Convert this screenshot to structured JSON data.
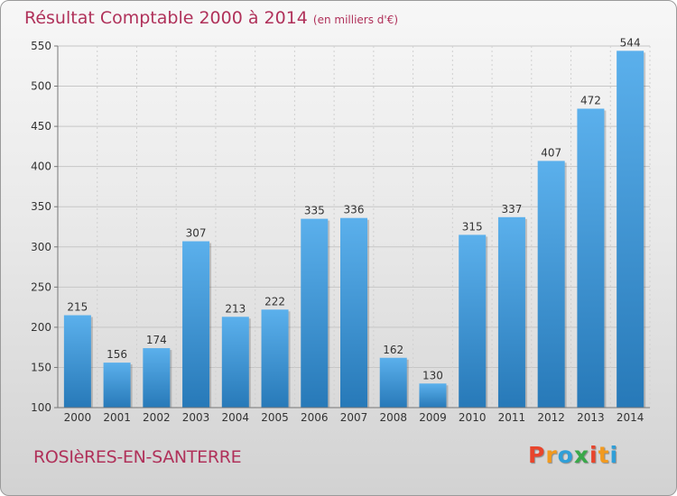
{
  "header": {
    "title": "Résultat Comptable 2000 à 2014",
    "unit": "(en milliers d'€)"
  },
  "footer": {
    "commune": "ROSIèRES-EN-SANTERRE",
    "logo_letters": [
      "P",
      "r",
      "o",
      "x",
      "i",
      "t",
      "i"
    ]
  },
  "colors": {
    "title": "#b0315a",
    "bar_top": "#5bb0ec",
    "bar_bottom": "#2779b8",
    "logo": [
      "#e8452c",
      "#f29a1f",
      "#2f9fd8",
      "#3aa84a",
      "#e8452c",
      "#f29a1f",
      "#2f9fd8"
    ]
  },
  "chart_data": {
    "type": "bar",
    "title": "Résultat Comptable 2000 à 2014",
    "categories": [
      "2000",
      "2001",
      "2002",
      "2003",
      "2004",
      "2005",
      "2006",
      "2007",
      "2008",
      "2009",
      "2010",
      "2011",
      "2012",
      "2013",
      "2014"
    ],
    "values": [
      215,
      156,
      174,
      307,
      213,
      222,
      335,
      336,
      162,
      130,
      315,
      337,
      407,
      472,
      544
    ],
    "value_labels": [
      "215",
      "156",
      "174",
      "307",
      "213",
      "222",
      "335",
      "336",
      "162",
      "130",
      "315",
      "337",
      "407",
      "472",
      "544"
    ],
    "yticks": [
      100,
      150,
      200,
      250,
      300,
      350,
      400,
      450,
      500,
      550
    ],
    "ytick_labels": [
      "100",
      "150",
      "200",
      "250",
      "300",
      "350",
      "400",
      "450",
      "500",
      "550"
    ],
    "ylim": [
      100,
      550
    ],
    "grid": true,
    "legend": "none"
  }
}
